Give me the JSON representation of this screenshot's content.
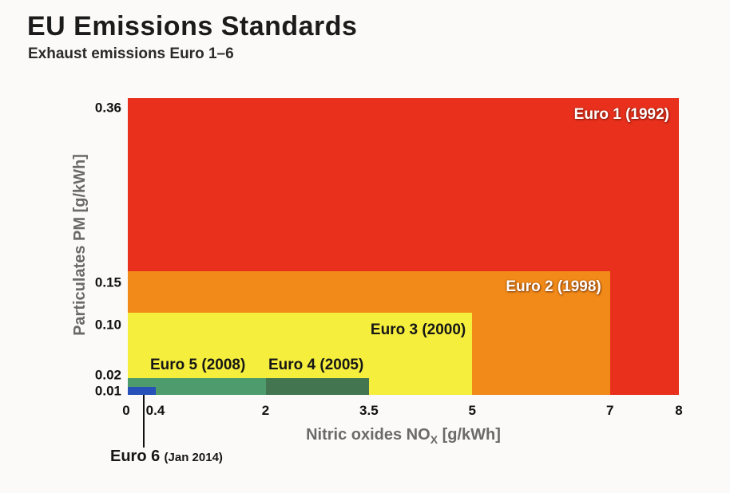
{
  "header": {
    "title": "EU Emissions Standards",
    "subtitle": "Exhaust emissions Euro 1–6"
  },
  "chart_data": {
    "type": "area",
    "title": "EU Emissions Standards",
    "subtitle": "Exhaust emissions Euro 1–6",
    "description": "Nested rectangles showing EU exhaust emission limits Euro 1-6; each rectangle spans from origin to that standard's NOx and PM limits",
    "xlabel": {
      "prefix": "Nitric oxides NO",
      "sub": "X",
      "suffix": " [g/kWh]"
    },
    "ylabel": "Particulates PM [g/kWh]",
    "xlim": [
      0,
      8
    ],
    "ylim": [
      0,
      0.36
    ],
    "grid": false,
    "legend_position": "labels-inside-regions",
    "x_ticks": [
      {
        "v": 0,
        "label": "0"
      },
      {
        "v": 0.4,
        "label": "0.4"
      },
      {
        "v": 2,
        "label": "2"
      },
      {
        "v": 3.5,
        "label": "3.5"
      },
      {
        "v": 5,
        "label": "5"
      },
      {
        "v": 7,
        "label": "7"
      },
      {
        "v": 8,
        "label": "8"
      }
    ],
    "y_ticks": [
      {
        "v": 0.36,
        "label": "0.36"
      },
      {
        "v": 0.15,
        "label": "0.15"
      },
      {
        "v": 0.1,
        "label": "0.10"
      },
      {
        "v": 0.02,
        "label": "0.02"
      },
      {
        "v": 0.01,
        "label": "0.01"
      }
    ],
    "series": [
      {
        "id": "euro1",
        "label": "Euro 1 (1992)",
        "nox_limit": 8,
        "pm_limit": 0.36,
        "color": "#e8301d",
        "label_style": "light"
      },
      {
        "id": "euro2",
        "label": "Euro 2 (1998)",
        "nox_limit": 7,
        "pm_limit": 0.15,
        "color": "#f18a18",
        "label_style": "light"
      },
      {
        "id": "euro3",
        "label": "Euro 3 (2000)",
        "nox_limit": 5,
        "pm_limit": 0.1,
        "color": "#f5ee3d",
        "label_style": "dark"
      },
      {
        "id": "euro4",
        "label": "Euro 4 (2005)",
        "nox_limit": 3.5,
        "pm_limit": 0.02,
        "color": "#447551",
        "label_style": "dark"
      },
      {
        "id": "euro5",
        "label": "Euro 5 (2008)",
        "nox_limit": 2,
        "pm_limit": 0.02,
        "color": "#4e9c6e",
        "label_style": "dark"
      },
      {
        "id": "euro6",
        "label": "Euro 6",
        "year_label": "(Jan 2014)",
        "nox_limit": 0.4,
        "pm_limit": 0.01,
        "color": "#2750b8",
        "label_style": "dark"
      }
    ]
  }
}
